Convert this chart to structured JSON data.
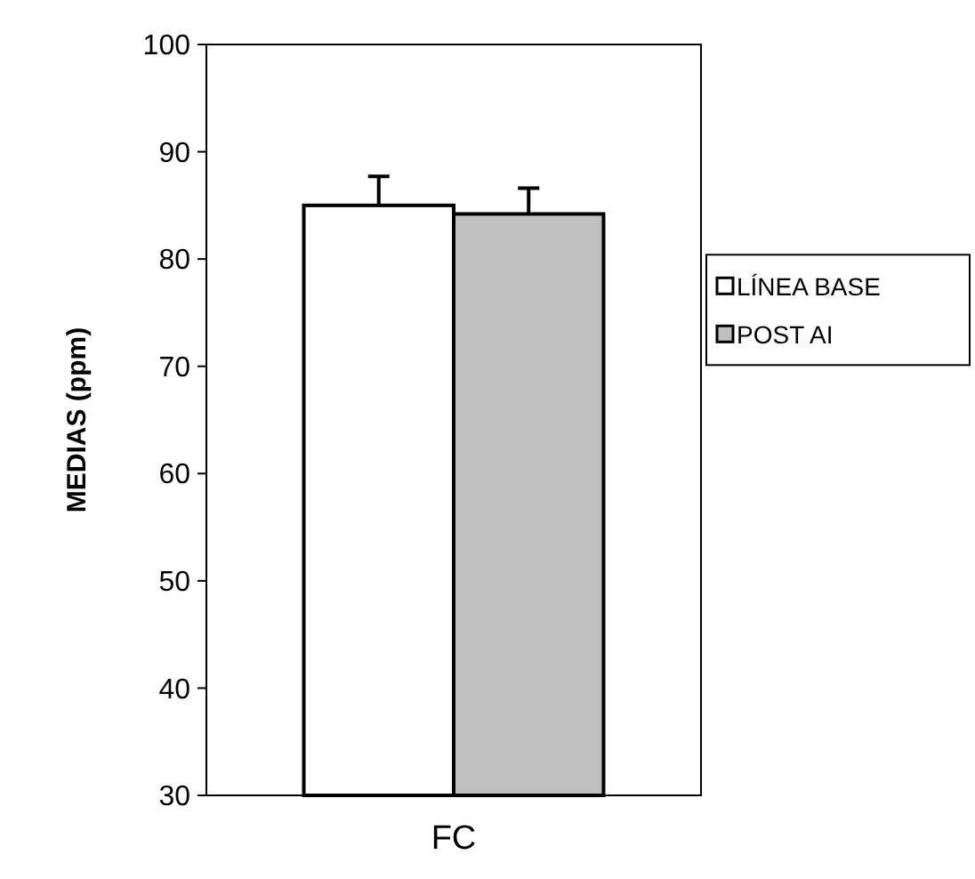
{
  "chart_data": {
    "type": "bar",
    "ylabel": "MEDIAS (ppm)",
    "categories": [
      "FC"
    ],
    "series": [
      {
        "name": "LÍNEA BASE",
        "color": "#ffffff",
        "values": [
          85.0
        ],
        "errors": [
          [
            85.0,
            87.7
          ]
        ]
      },
      {
        "name": "POST AI",
        "color": "#c0c0c0",
        "values": [
          84.2
        ],
        "errors": [
          [
            84.2,
            86.6
          ]
        ]
      }
    ],
    "ylim": [
      30,
      100
    ],
    "yticks": [
      30,
      40,
      50,
      60,
      70,
      80,
      90,
      100
    ],
    "grid": false,
    "legend": "right"
  }
}
